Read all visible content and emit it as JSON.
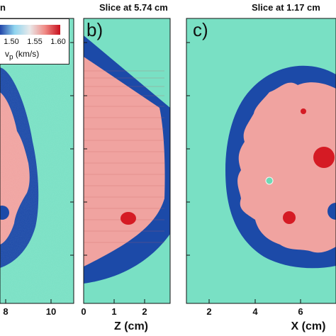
{
  "panels": {
    "a": {
      "title": "n",
      "x_ticks": [
        "8",
        "10"
      ]
    },
    "b": {
      "letter": "b)",
      "title": "Slice at 5.74 cm",
      "x_ticks": [
        "0",
        "1",
        "2"
      ],
      "x_label": "Z (cm)"
    },
    "c": {
      "letter": "c)",
      "title": "Slice at 1.17 cm",
      "x_ticks": [
        "2",
        "4",
        "6"
      ],
      "x_label": "X (cm)"
    }
  },
  "colorbar": {
    "ticks": [
      "1.50",
      "1.55",
      "1.60"
    ],
    "label_main": "v",
    "label_sub": "p",
    "label_unit": " (km/s)"
  },
  "colors": {
    "background": "#79e0c4",
    "skin": "#1c4aa8",
    "tissue": "#f0a3a0",
    "lesion": "#d51b24",
    "cyst": "#6fd9b4"
  }
}
